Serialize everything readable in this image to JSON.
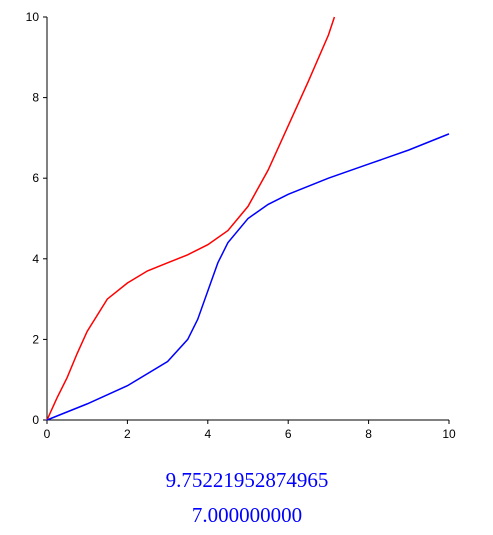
{
  "chart_data": {
    "type": "line",
    "xlim": [
      0,
      10
    ],
    "ylim": [
      0,
      10
    ],
    "xticks": [
      0,
      2,
      4,
      6,
      8,
      10
    ],
    "yticks": [
      0,
      2,
      4,
      6,
      8,
      10
    ],
    "series": [
      {
        "color": "#ff0000",
        "x": [
          0,
          0.25,
          0.5,
          0.75,
          1,
          1.5,
          2,
          2.5,
          3,
          3.5,
          4,
          4.5,
          5,
          5.5,
          6,
          6.5,
          7,
          7.15
        ],
        "values": [
          0,
          0.55,
          1.05,
          1.65,
          2.2,
          3.0,
          3.4,
          3.7,
          3.9,
          4.1,
          4.35,
          4.7,
          5.3,
          6.2,
          7.3,
          8.4,
          9.55,
          10
        ]
      },
      {
        "color": "#0000ff",
        "x": [
          0,
          1,
          2,
          3,
          3.5,
          3.75,
          4,
          4.25,
          4.5,
          5,
          5.5,
          6,
          7,
          8,
          9,
          10
        ],
        "values": [
          0,
          0.4,
          0.85,
          1.45,
          2.0,
          2.5,
          3.2,
          3.9,
          4.4,
          5.0,
          5.35,
          5.6,
          6.0,
          6.35,
          6.7,
          7.1
        ]
      }
    ]
  },
  "outputs": [
    "9.75221952874965",
    "7.000000000"
  ]
}
